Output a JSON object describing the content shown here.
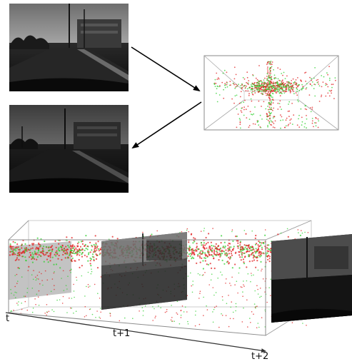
{
  "time_labels": {
    "t0": "t",
    "t1": "t+1",
    "t2": "t+2"
  },
  "colors": {
    "event_positive": "#e02020",
    "event_negative": "#30d030",
    "box_edge": "#9a9a9a",
    "arrow": "#000000"
  },
  "frames": [
    {
      "id": "frame-top",
      "sky": "#8f8f8f",
      "ground": "#1c1c1c"
    },
    {
      "id": "frame-middle",
      "sky": "#5a5a5a",
      "ground": "#161616"
    }
  ]
}
